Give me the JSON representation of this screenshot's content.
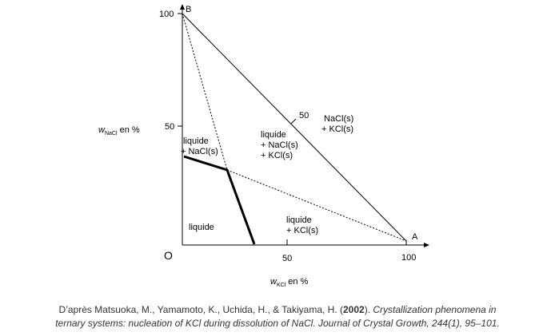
{
  "axes": {
    "x_label_main": "w",
    "x_label_sub": "KCl",
    "x_label_unit": " en %",
    "y_label_main": "w",
    "y_label_sub": "NaCl",
    "y_label_unit": " en %",
    "origin": "O",
    "x_ticks": [
      "50",
      "100"
    ],
    "y_ticks": [
      "100",
      "50"
    ]
  },
  "vertices": {
    "A": "A",
    "B": "B"
  },
  "hypotenuse_tick_label": "50",
  "regions": {
    "liquide": "liquide",
    "liquide_nacl_1": "liquide",
    "liquide_nacl_2": "+ NaCl(s)",
    "liquide_nacl_kcl_1": "liquide",
    "liquide_nacl_kcl_2": "+ NaCl(s)",
    "liquide_nacl_kcl_3": "+ KCl(s)",
    "liquide_kcl_1": "liquide",
    "liquide_kcl_2": "+ KCl(s)",
    "solid_1": "NaCl(s)",
    "solid_2": "+ KCl(s)"
  },
  "caption": {
    "prefix": "D’après Matsuoka, M., Yamamoto, K., Uchida, H., & Takiyama, H. (",
    "year": "2002",
    "mid": "). ",
    "title_part": "Crystallization phenomena in",
    "line2": "ternary systems: nucleation of KCl during dissolution of NaCl. Journal of Crystal Growth, 244(1), 95–101."
  }
}
